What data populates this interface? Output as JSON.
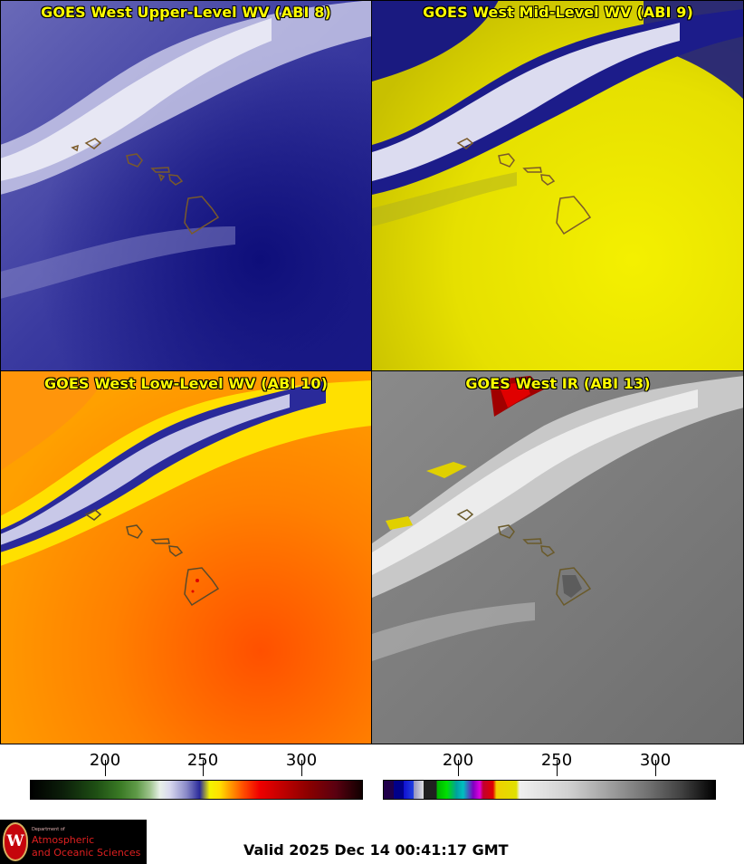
{
  "panels": {
    "upper_wv": {
      "title": "GOES West Upper-Level WV (ABI 8)"
    },
    "mid_wv": {
      "title": "GOES West Mid-Level WV (ABI 9)"
    },
    "low_wv": {
      "title": "GOES West Low-Level WV (ABI 10)"
    },
    "ir": {
      "title": "GOES West IR (ABI 13)"
    }
  },
  "colorbars": {
    "wv": {
      "ticks": [
        "200",
        "250",
        "300"
      ]
    },
    "ir": {
      "ticks": [
        "200",
        "250",
        "300"
      ]
    }
  },
  "logo": {
    "line1": "Department of",
    "line2": "Atmospheric",
    "line3": "and Oceanic Sciences"
  },
  "valid_time": "Valid 2025 Dec 14 00:41:17 GMT"
}
